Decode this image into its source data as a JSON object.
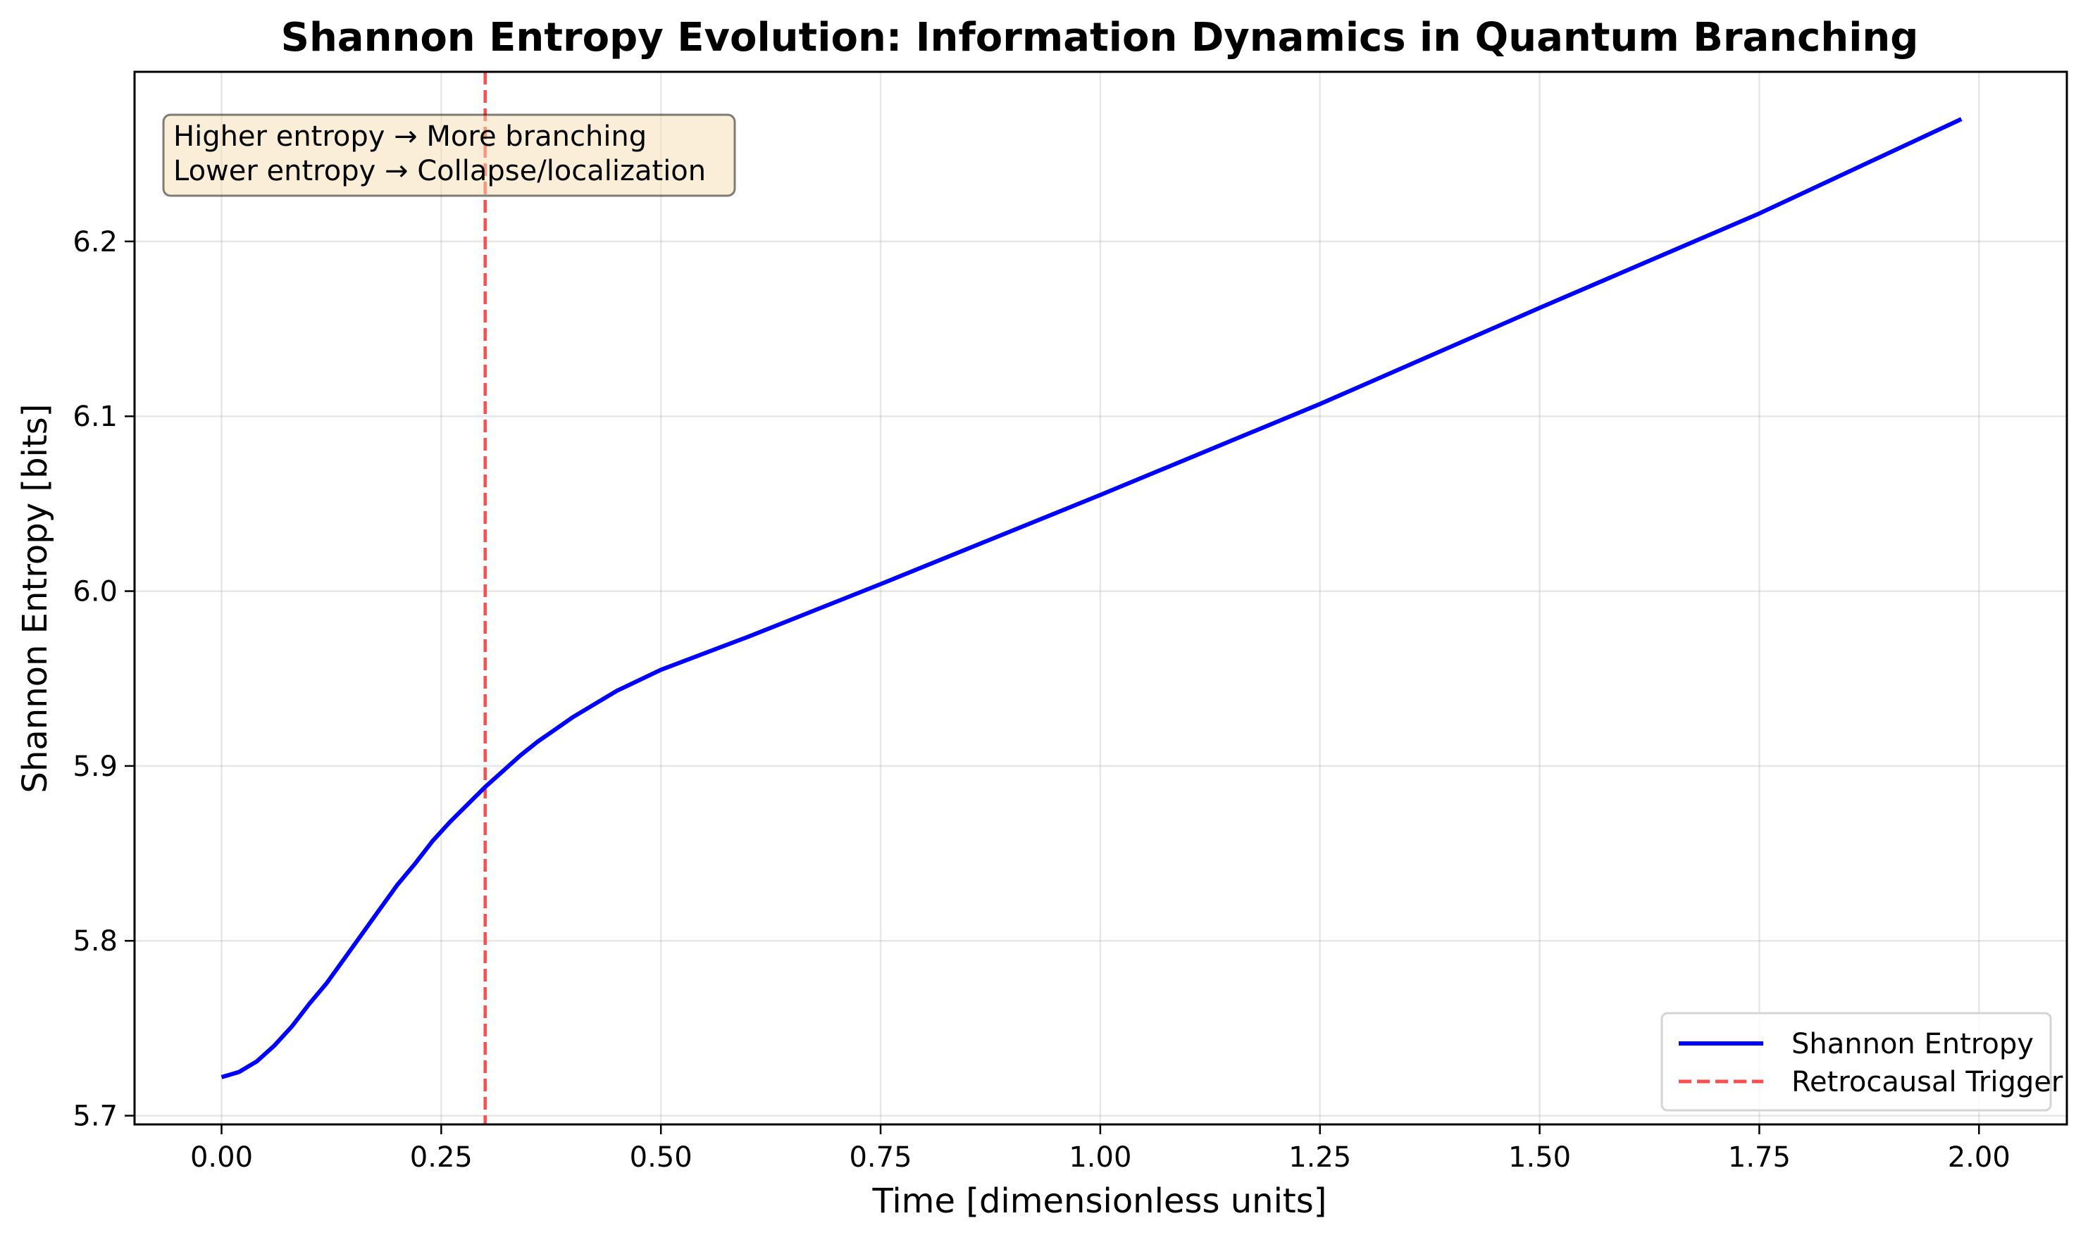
{
  "chart_data": {
    "type": "line",
    "title": "Shannon Entropy Evolution: Information Dynamics in Quantum Branching",
    "xlabel": "Time [dimensionless units]",
    "ylabel": "Shannon Entropy [bits]",
    "xlim": [
      -0.099,
      2.1
    ],
    "ylim": [
      5.695,
      6.297
    ],
    "xticks": [
      0,
      0.25,
      0.5,
      0.75,
      1.0,
      1.25,
      1.5,
      1.75,
      2.0
    ],
    "xtick_labels": [
      "0.00",
      "0.25",
      "0.50",
      "0.75",
      "1.00",
      "1.25",
      "1.50",
      "1.75",
      "2.00"
    ],
    "yticks": [
      5.7,
      5.8,
      5.9,
      6.0,
      6.1,
      6.2
    ],
    "ytick_labels": [
      "5.7",
      "5.8",
      "5.9",
      "6.0",
      "6.1",
      "6.2"
    ],
    "grid": true,
    "series": [
      {
        "name": "Shannon Entropy",
        "color": "#0000ff",
        "style": "solid",
        "x": [
          0,
          0.02,
          0.04,
          0.06,
          0.08,
          0.1,
          0.12,
          0.14,
          0.16,
          0.18,
          0.2,
          0.22,
          0.24,
          0.26,
          0.28,
          0.3,
          0.32,
          0.34,
          0.36,
          0.38,
          0.4,
          0.45,
          0.5,
          0.6,
          0.75,
          1.0,
          1.25,
          1.5,
          1.75,
          1.98
        ],
        "y": [
          5.722,
          5.725,
          5.731,
          5.74,
          5.751,
          5.764,
          5.776,
          5.79,
          5.804,
          5.818,
          5.832,
          5.844,
          5.857,
          5.868,
          5.878,
          5.888,
          5.897,
          5.906,
          5.914,
          5.921,
          5.928,
          5.943,
          5.955,
          5.974,
          6.004,
          6.055,
          6.107,
          6.162,
          6.216,
          6.27
        ]
      }
    ],
    "vlines": [
      {
        "name": "Retrocausal Trigger",
        "x": 0.3,
        "color": "#ff4d4d",
        "style": "dashed"
      }
    ],
    "legend": {
      "placement": "lower-right",
      "entries": [
        "Shannon Entropy",
        "Retrocausal Trigger"
      ]
    },
    "annotation": {
      "lines": [
        "Higher entropy → More branching",
        "Lower entropy → Collapse/localization"
      ],
      "placement": "top-left"
    }
  }
}
